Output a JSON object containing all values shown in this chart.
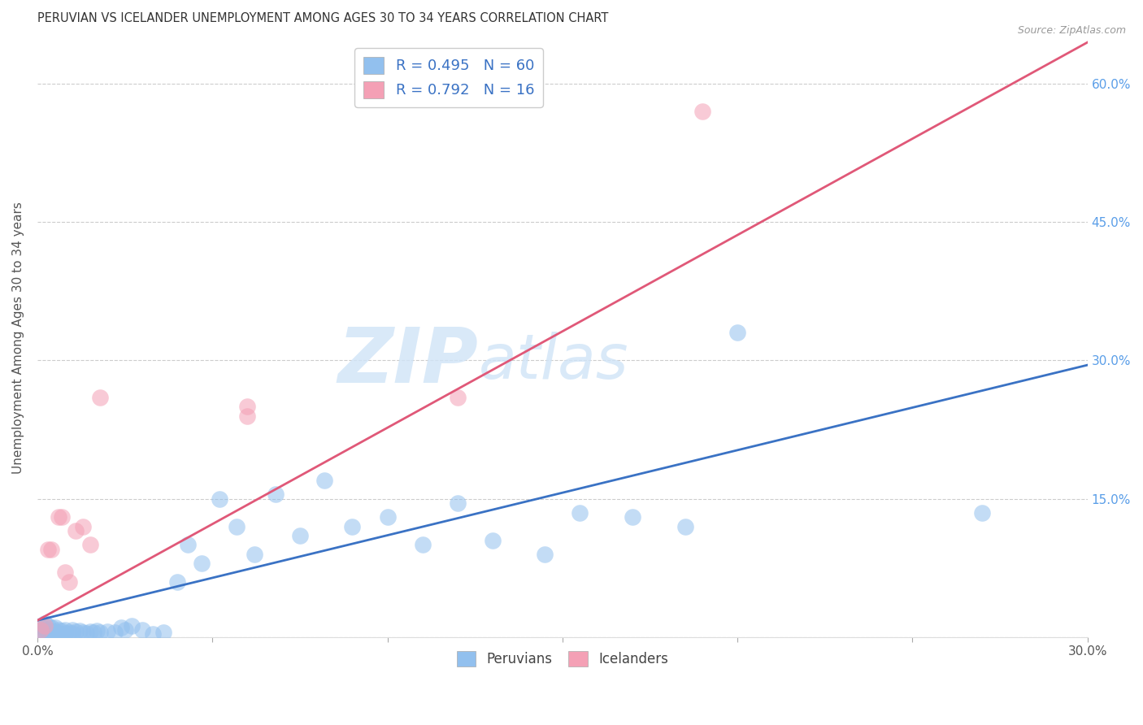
{
  "title": "PERUVIAN VS ICELANDER UNEMPLOYMENT AMONG AGES 30 TO 34 YEARS CORRELATION CHART",
  "source": "Source: ZipAtlas.com",
  "ylabel": "Unemployment Among Ages 30 to 34 years",
  "xlim": [
    0.0,
    0.3
  ],
  "ylim": [
    0.0,
    0.65
  ],
  "xticks": [
    0.0,
    0.05,
    0.1,
    0.15,
    0.2,
    0.25,
    0.3
  ],
  "xticklabels": [
    "0.0%",
    "",
    "",
    "",
    "",
    "",
    "30.0%"
  ],
  "yticks": [
    0.0,
    0.15,
    0.3,
    0.45,
    0.6
  ],
  "yticklabels_right": [
    "",
    "15.0%",
    "30.0%",
    "45.0%",
    "60.0%"
  ],
  "blue_color": "#92c0ee",
  "pink_color": "#f4a0b5",
  "blue_line_color": "#3a72c4",
  "pink_line_color": "#e05878",
  "legend_blue_label": "R = 0.495   N = 60",
  "legend_pink_label": "R = 0.792   N = 16",
  "peruvian_x": [
    0.001,
    0.001,
    0.001,
    0.002,
    0.002,
    0.002,
    0.002,
    0.003,
    0.003,
    0.003,
    0.004,
    0.004,
    0.005,
    0.005,
    0.005,
    0.006,
    0.006,
    0.007,
    0.007,
    0.008,
    0.008,
    0.009,
    0.01,
    0.01,
    0.011,
    0.012,
    0.013,
    0.014,
    0.015,
    0.016,
    0.017,
    0.018,
    0.02,
    0.022,
    0.024,
    0.025,
    0.027,
    0.03,
    0.033,
    0.036,
    0.04,
    0.043,
    0.047,
    0.052,
    0.057,
    0.062,
    0.068,
    0.075,
    0.082,
    0.09,
    0.1,
    0.11,
    0.12,
    0.13,
    0.145,
    0.155,
    0.17,
    0.185,
    0.2,
    0.27
  ],
  "peruvian_y": [
    0.005,
    0.008,
    0.012,
    0.005,
    0.008,
    0.01,
    0.015,
    0.005,
    0.008,
    0.012,
    0.005,
    0.01,
    0.003,
    0.006,
    0.01,
    0.004,
    0.008,
    0.003,
    0.007,
    0.004,
    0.008,
    0.005,
    0.004,
    0.008,
    0.006,
    0.007,
    0.005,
    0.004,
    0.006,
    0.005,
    0.007,
    0.005,
    0.006,
    0.005,
    0.01,
    0.008,
    0.012,
    0.008,
    0.003,
    0.005,
    0.06,
    0.1,
    0.08,
    0.15,
    0.12,
    0.09,
    0.155,
    0.11,
    0.17,
    0.12,
    0.13,
    0.1,
    0.145,
    0.105,
    0.09,
    0.135,
    0.13,
    0.12,
    0.33,
    0.135
  ],
  "icelander_x": [
    0.001,
    0.002,
    0.003,
    0.004,
    0.006,
    0.007,
    0.008,
    0.009,
    0.011,
    0.013,
    0.015,
    0.018,
    0.06,
    0.06,
    0.12,
    0.19
  ],
  "icelander_y": [
    0.008,
    0.012,
    0.095,
    0.095,
    0.13,
    0.13,
    0.07,
    0.06,
    0.115,
    0.12,
    0.1,
    0.26,
    0.24,
    0.25,
    0.26,
    0.57
  ],
  "blue_trendline_x": [
    0.0,
    0.3
  ],
  "blue_trendline_y": [
    0.018,
    0.295
  ],
  "pink_trendline_x": [
    0.0,
    0.3
  ],
  "pink_trendline_y": [
    0.018,
    0.645
  ]
}
